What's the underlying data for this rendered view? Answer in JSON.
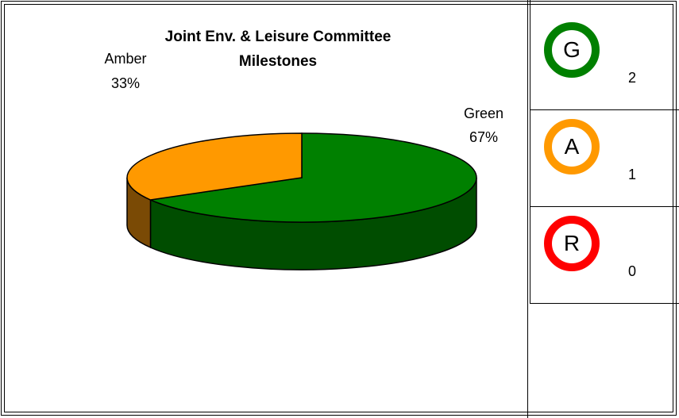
{
  "chart_data": {
    "type": "pie",
    "title_lines": [
      "Joint Env. & Leisure Committee",
      "Milestones"
    ],
    "slices": [
      {
        "name": "Green",
        "value": 2,
        "percent_label": "67%",
        "color": "#008000",
        "side_color": "#004d00"
      },
      {
        "name": "Amber",
        "value": 1,
        "percent_label": "33%",
        "color": "#ff9900",
        "side_color": "#7a4a05"
      }
    ],
    "three_d": true,
    "legend": "none"
  },
  "rag_status": {
    "items": [
      {
        "letter": "G",
        "count": "2",
        "color": "#008000"
      },
      {
        "letter": "A",
        "count": "1",
        "color": "#ff9900"
      },
      {
        "letter": "R",
        "count": "0",
        "color": "#ff0000"
      }
    ]
  }
}
